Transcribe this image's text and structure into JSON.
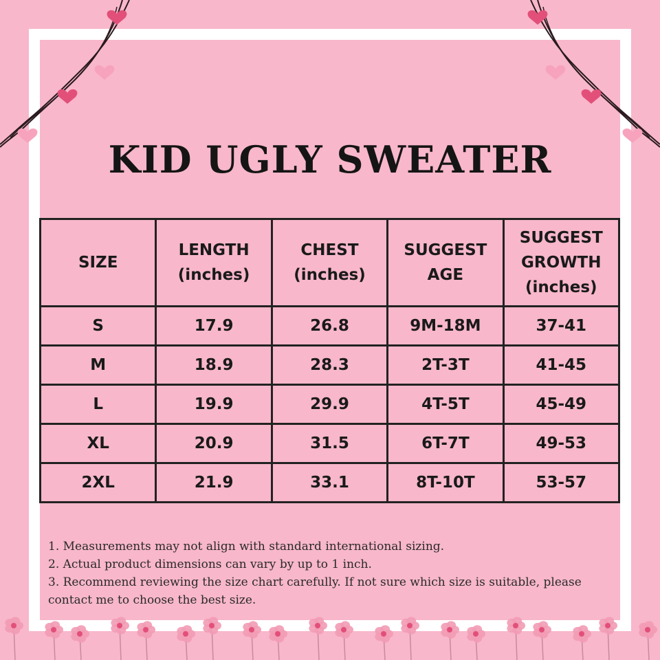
{
  "title": "KID UGLY SWEATER",
  "table": {
    "headers": [
      [
        "SIZE"
      ],
      [
        "LENGTH",
        "(inches)"
      ],
      [
        "CHEST",
        "(inches)"
      ],
      [
        "SUGGEST",
        "AGE"
      ],
      [
        "SUGGEST",
        "GROWTH",
        "(inches)"
      ]
    ],
    "rows": [
      [
        "S",
        "17.9",
        "26.8",
        "9M-18M",
        "37-41"
      ],
      [
        "M",
        "18.9",
        "28.3",
        "2T-3T",
        "41-45"
      ],
      [
        "L",
        "19.9",
        "29.9",
        "4T-5T",
        "45-49"
      ],
      [
        "XL",
        "20.9",
        "31.5",
        "6T-7T",
        "49-53"
      ],
      [
        "2XL",
        "21.9",
        "33.1",
        "8T-10T",
        "53-57"
      ]
    ]
  },
  "notes": [
    "1. Measurements may not align with standard international sizing.",
    "2. Actual product dimensions can vary by up to 1 inch.",
    "3. Recommend reviewing the size chart carefully. If not sure which size is suitable, please contact me to choose the best size."
  ],
  "colors": {
    "background": "#f8b7cb",
    "frame": "#ffffff",
    "heart_dark": "#e2507a",
    "heart_light": "#f7a3bd",
    "flower": "#f29bb5"
  },
  "decorations": {
    "left_garland": "heart-string-garland",
    "right_garland": "heart-string-garland",
    "bottom_border": "pink-flower-border"
  }
}
